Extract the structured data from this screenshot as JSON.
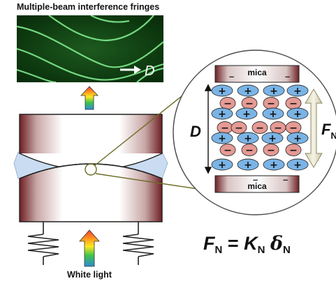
{
  "title": "Multiple-beam interference fringes",
  "caption": "White light",
  "fringe_arrow_label": "D",
  "separation_label": "D",
  "force_label": {
    "symbol": "F",
    "subscript": "N"
  },
  "mica_top_label": "mica",
  "mica_bottom_label": "mica",
  "surface_charge_sign": "–",
  "ion_signs": {
    "positive": "+",
    "negative": "−"
  },
  "equation": {
    "lhs_symbol": "F",
    "lhs_sub": "N",
    "equals": "=",
    "k_symbol": "K",
    "k_sub": "N",
    "delta_symbol": "δ",
    "delta_sub": "N"
  },
  "colors": {
    "fringe_background": "#0f3f12",
    "fringe_line": "#7fe88c",
    "disk_edge": "#6e1f24",
    "gap_fill": "#c9dcf2",
    "cation_fill": "#7ab4e6",
    "anion_fill": "#e69a94",
    "connector_line": "#6d6b24",
    "force_arrow": "#ecead2"
  },
  "icons": [
    "rainbow-arrow-icon",
    "spring-icon",
    "double-arrow-icon"
  ]
}
